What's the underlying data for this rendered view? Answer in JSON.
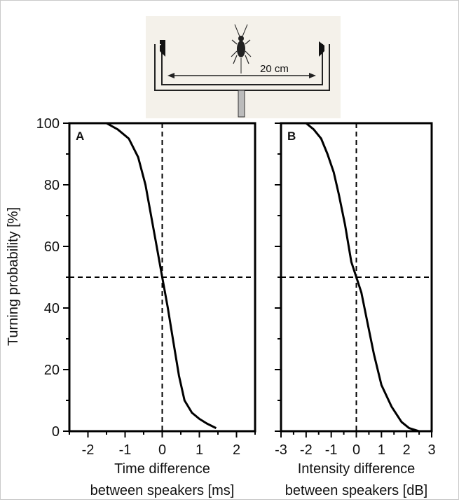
{
  "figure": {
    "ylabel": "Turning probability [%]",
    "scale_label": "20 cm"
  },
  "chart_data": [
    {
      "type": "line",
      "panel_label": "A",
      "xlabel_line1": "Time difference",
      "xlabel_line2": "between speakers [ms]",
      "ylabel": "Turning probability [%]",
      "xlim": [
        -2.5,
        2.5
      ],
      "ylim": [
        0,
        100
      ],
      "xticks": [
        -2,
        -1,
        0,
        1,
        2
      ],
      "yticks": [
        0,
        20,
        40,
        60,
        80,
        100
      ],
      "grid": false,
      "reference_lines": {
        "x": 0,
        "y": 50
      },
      "series": [
        {
          "x": [
            -1.5,
            -1.2,
            -0.9,
            -0.65,
            -0.45,
            -0.3,
            -0.15,
            0,
            0.15,
            0.3,
            0.45,
            0.6,
            0.8,
            1.0,
            1.2,
            1.45
          ],
          "y": [
            100,
            98,
            95,
            89,
            80,
            70,
            60,
            50,
            40,
            29,
            18,
            10,
            6,
            4,
            2.5,
            1
          ]
        }
      ]
    },
    {
      "type": "line",
      "panel_label": "B",
      "xlabel_line1": "Intensity difference",
      "xlabel_line2": "between speakers [dB]",
      "xlim": [
        -3,
        3
      ],
      "ylim": [
        0,
        100
      ],
      "xticks": [
        -3,
        -2,
        -1,
        0,
        1,
        2,
        3
      ],
      "yticks": [
        0,
        20,
        40,
        60,
        80,
        100
      ],
      "grid": false,
      "reference_lines": {
        "x": 0,
        "y": 50
      },
      "series": [
        {
          "x": [
            -2.0,
            -1.7,
            -1.4,
            -1.15,
            -0.9,
            -0.7,
            -0.45,
            -0.2,
            0,
            0.2,
            0.45,
            0.7,
            1.0,
            1.4,
            1.8,
            2.1,
            2.5
          ],
          "y": [
            100,
            98,
            95,
            90,
            84,
            77,
            67,
            55,
            50,
            45,
            35,
            25,
            15,
            8,
            3,
            1,
            0
          ]
        }
      ]
    }
  ]
}
